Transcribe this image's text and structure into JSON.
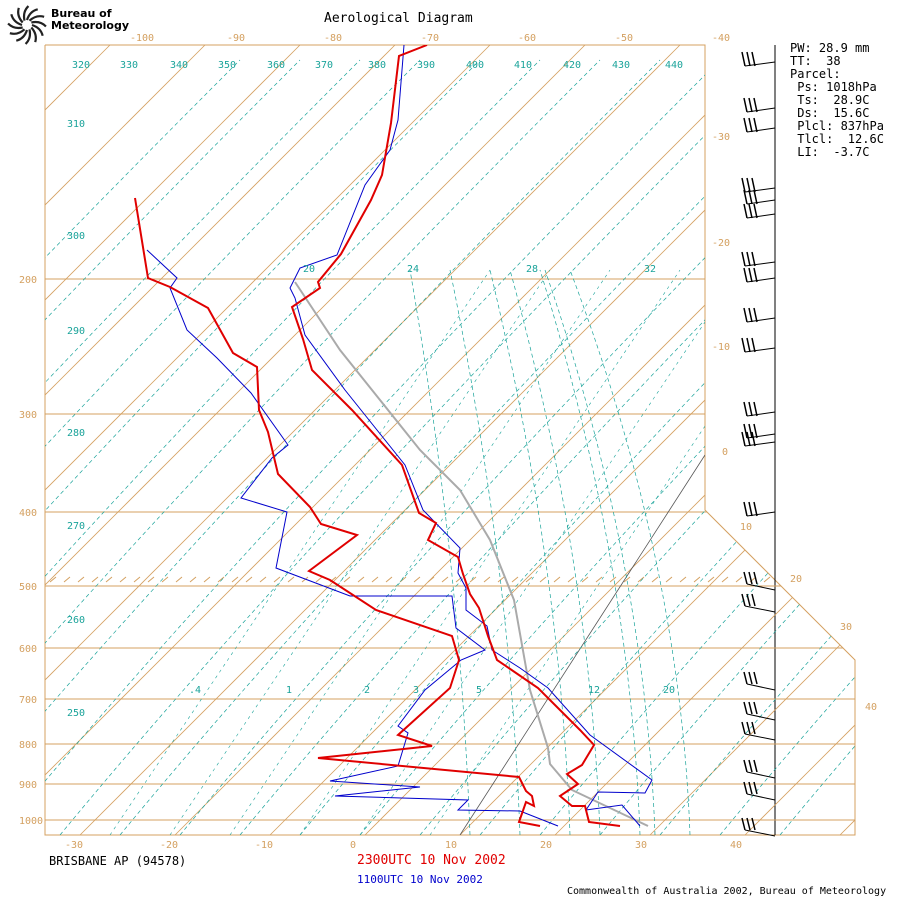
{
  "header": {
    "org_line1": "Bureau of",
    "org_line2": "Meteorology",
    "title": "Aerological Diagram"
  },
  "footer": {
    "station": "BRISBANE AP (94578)",
    "time_primary": "2300UTC 10 Nov 2002",
    "time_secondary": "1100UTC 10 Nov 2002",
    "copyright": "Commonwealth of Australia 2002, Bureau of Meteorology"
  },
  "indices": {
    "pw": "PW: 28.9 mm",
    "tt": "TT:  38",
    "parcel": "Parcel:",
    "ps": " Ps: 1018hPa",
    "ts": " Ts:  28.9C",
    "ds": " Ds:  15.6C",
    "plcl": " Plcl: 837hPa",
    "tlcl": " Tlcl:  12.6C",
    "li": " LI:  -3.7C"
  },
  "colors": {
    "isotherm": "#d4a060",
    "isobar": "#d4a060",
    "adiabat": "#1aa39a",
    "primary": "#e00000",
    "secondary": "#0000cc",
    "parcel": "#aaaaaa"
  },
  "chart_data": {
    "type": "line",
    "title": "Aerological Diagram",
    "pressure_levels": [
      "1000",
      "900",
      "800",
      "700",
      "600",
      "500",
      "400",
      "300",
      "200"
    ],
    "bottom_temps": [
      "-30",
      "-20",
      "-10",
      "0",
      "10",
      "20",
      "30",
      "40"
    ],
    "top_temps": [
      "-100",
      "-90",
      "-80",
      "-70",
      "-60",
      "-50",
      "-40"
    ],
    "right_temps": [
      "-30",
      "-20",
      "-10",
      "0",
      "10",
      "20",
      "30",
      "40"
    ],
    "theta_labels": [
      "320",
      "330",
      "340",
      "350",
      "360",
      "370",
      "380",
      "390",
      "400",
      "410",
      "420",
      "430",
      "440",
      "310",
      "300",
      "290",
      "280",
      "270",
      "260",
      "250"
    ],
    "mixing_ratio_labels": [
      ".4",
      "1",
      "2",
      "3",
      "5",
      "12",
      "20",
      "20",
      "24",
      "28",
      "32"
    ],
    "series": [
      {
        "name": "2300UTC 10 Nov 2002 temperature",
        "color": "#e00000"
      },
      {
        "name": "2300UTC 10 Nov 2002 dewpoint",
        "color": "#e00000"
      },
      {
        "name": "1100UTC 10 Nov 2002 temperature",
        "color": "#0000cc"
      },
      {
        "name": "1100UTC 10 Nov 2002 dewpoint",
        "color": "#0000cc"
      },
      {
        "name": "parcel",
        "color": "#aaaaaa"
      }
    ],
    "grid": true
  }
}
